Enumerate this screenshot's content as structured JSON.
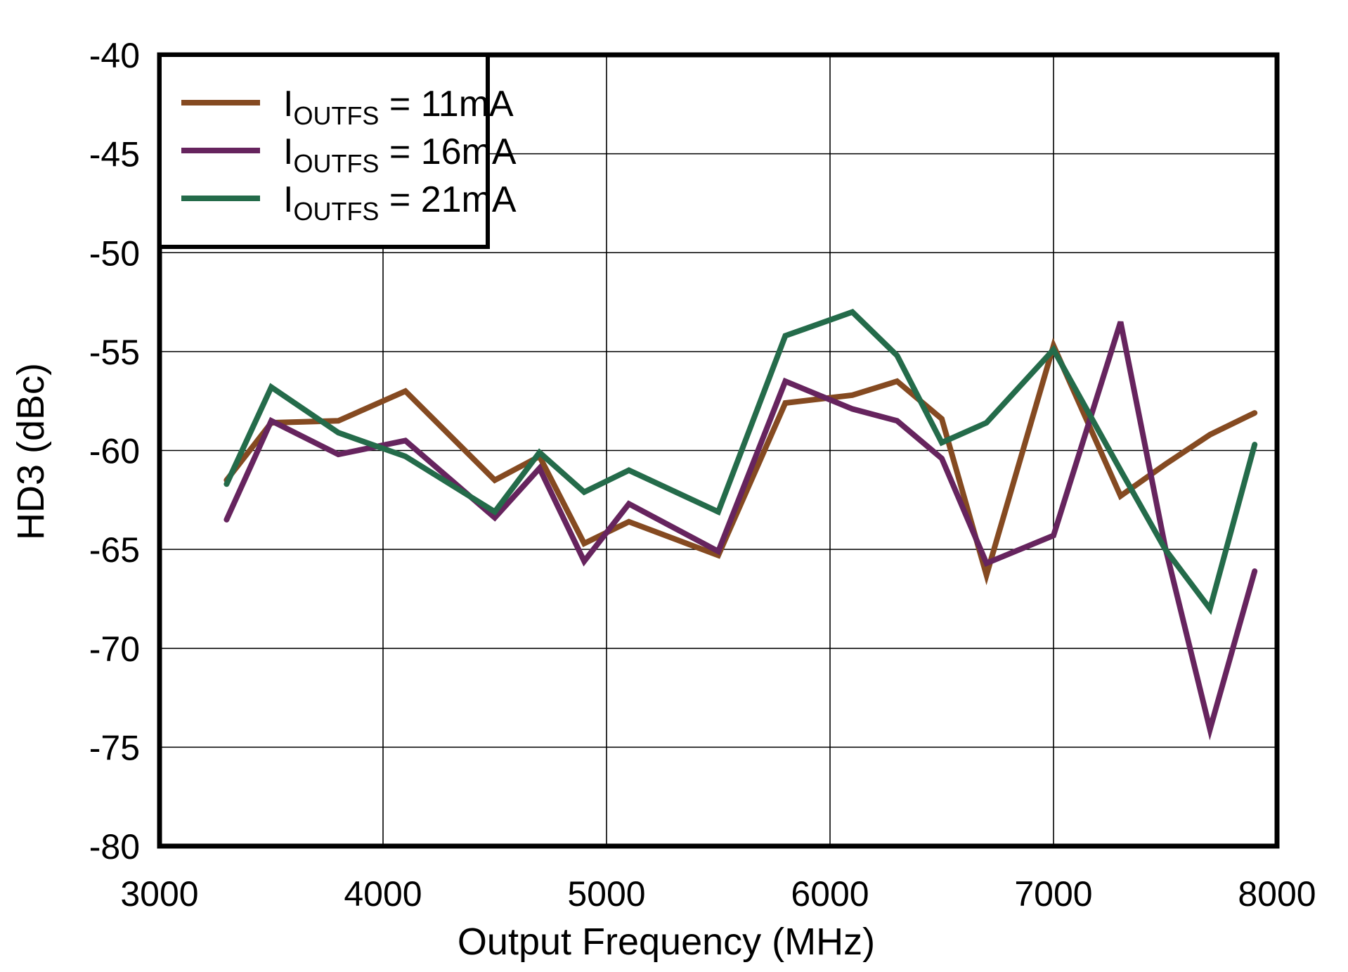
{
  "chart_data": {
    "type": "line",
    "title": "",
    "xlabel": "Output Frequency (MHz)",
    "ylabel": "HD3 (dBc)",
    "xlim": [
      3000,
      8000
    ],
    "ylim": [
      -80,
      -40
    ],
    "xticks": [
      3000,
      4000,
      5000,
      6000,
      7000,
      8000
    ],
    "yticks": [
      -40,
      -45,
      -50,
      -55,
      -60,
      -65,
      -70,
      -75,
      -80
    ],
    "xtick_labels": [
      "3000",
      "4000",
      "5000",
      "6000",
      "7000",
      "8000"
    ],
    "ytick_labels": [
      "-40",
      "-45",
      "-50",
      "-55",
      "-60",
      "-65",
      "-70",
      "-75",
      "-80"
    ],
    "grid": true,
    "legend_position": "upper left",
    "x": [
      3300,
      3500,
      3800,
      4100,
      4500,
      4700,
      4900,
      5100,
      5500,
      5800,
      6100,
      6300,
      6500,
      6700,
      7000,
      7300,
      7500,
      7700,
      7900
    ],
    "series": [
      {
        "name": "IOUTFS = 11mA",
        "label_main": "I",
        "label_sub": "OUTFS",
        "label_rest": " = 11mA",
        "color": "#854A21",
        "values": [
          -61.5,
          -58.6,
          -58.5,
          -57.0,
          -61.5,
          -60.3,
          -64.7,
          -63.6,
          -65.3,
          -57.6,
          -57.2,
          -56.5,
          -58.4,
          -66.3,
          -54.7,
          -62.3,
          -60.7,
          -59.2,
          -58.1
        ]
      },
      {
        "name": "IOUTFS = 16mA",
        "label_main": "I",
        "label_sub": "OUTFS",
        "label_rest": " = 16mA",
        "color": "#66245E",
        "values": [
          -63.5,
          -58.5,
          -60.2,
          -59.5,
          -63.4,
          -60.9,
          -65.6,
          -62.7,
          -65.1,
          -56.5,
          -57.9,
          -58.5,
          -60.4,
          -65.7,
          -64.3,
          -53.5,
          -64.9,
          -74.1,
          -66.1
        ]
      },
      {
        "name": "IOUTFS = 21mA",
        "label_main": "I",
        "label_sub": "OUTFS",
        "label_rest": " = 21mA",
        "color": "#246B4A",
        "values": [
          -61.7,
          -56.8,
          -59.1,
          -60.3,
          -63.1,
          -60.1,
          -62.1,
          -61.0,
          -63.1,
          -54.2,
          -53.0,
          -55.2,
          -59.6,
          -58.6,
          -54.9,
          -61.0,
          -65.0,
          -68.0,
          -59.7
        ]
      }
    ]
  }
}
